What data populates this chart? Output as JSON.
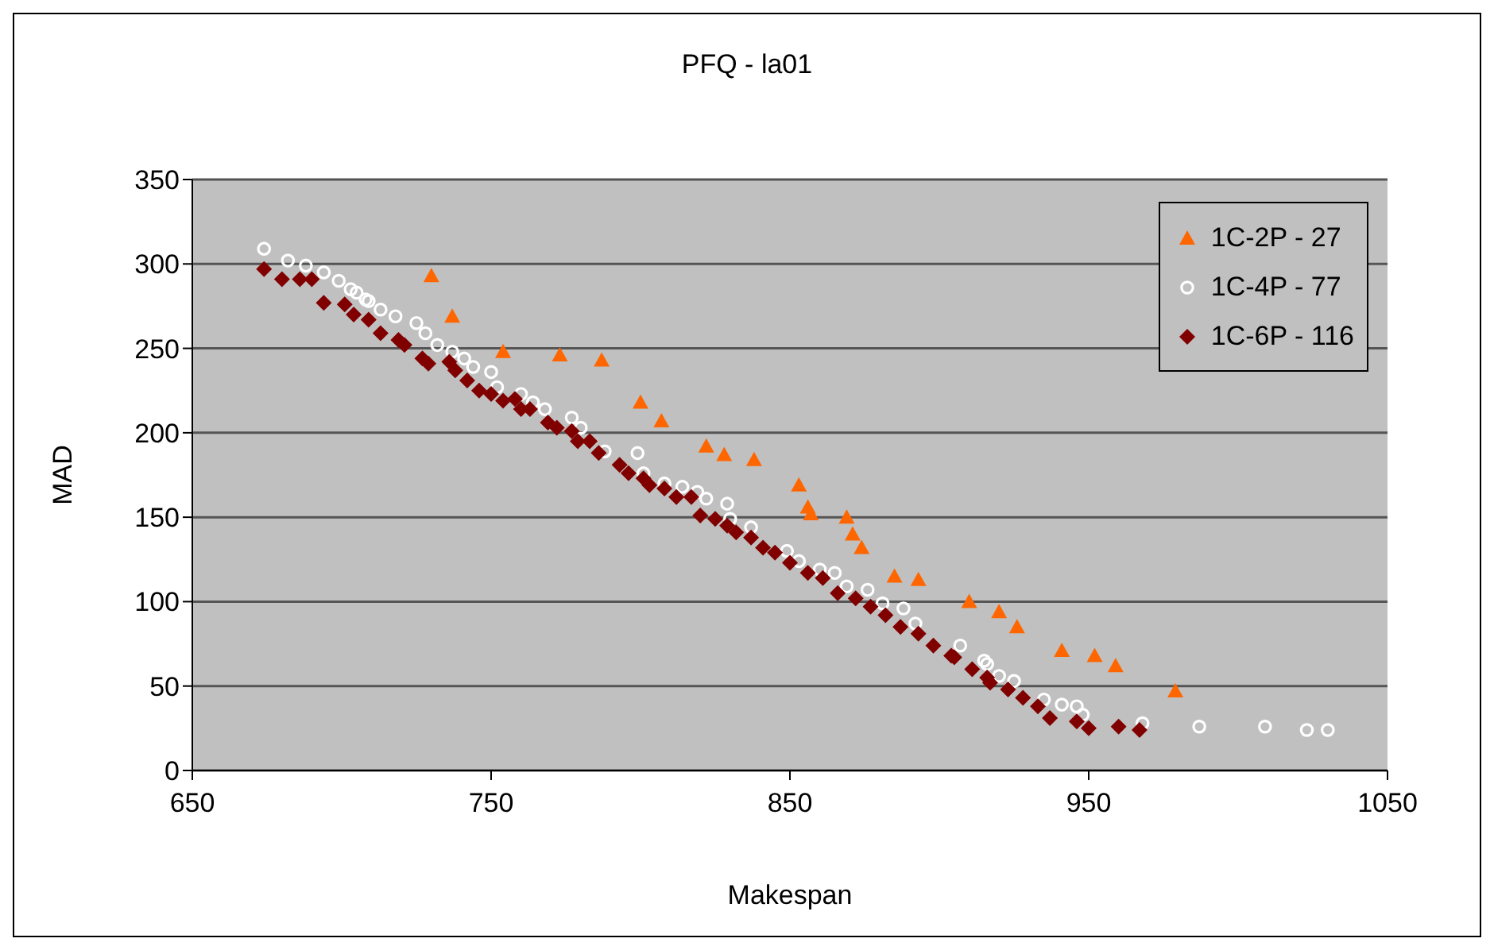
{
  "chart_data": {
    "type": "scatter",
    "title": "PFQ - la01",
    "xlabel": "Makespan",
    "ylabel": "MAD",
    "xlim": [
      650,
      1050
    ],
    "xticks": [
      650,
      750,
      850,
      950,
      1050
    ],
    "ylim": [
      0,
      350
    ],
    "yticks": [
      0,
      50,
      100,
      150,
      200,
      250,
      300,
      350
    ],
    "grid": "y",
    "legend": "top right",
    "series": [
      {
        "name": "1C-2P - 27",
        "color": "#ff6600",
        "marker": "triangle",
        "x": [
          730,
          737,
          754,
          773,
          787,
          800,
          807,
          822,
          828,
          838,
          853,
          856,
          857,
          869,
          871,
          874,
          885,
          893,
          910,
          920,
          926,
          941,
          952,
          959,
          979
        ],
        "values": [
          293,
          269,
          248,
          246,
          243,
          218,
          207,
          192,
          187,
          184,
          169,
          156,
          152,
          150,
          140,
          132,
          115,
          113,
          100,
          94,
          85,
          71,
          68,
          62,
          47
        ]
      },
      {
        "name": "1C-4P - 77",
        "color": "#ffffff",
        "marker": "circle",
        "x": [
          674,
          682,
          688,
          694,
          699,
          703,
          705,
          708,
          709,
          713,
          718,
          725,
          728,
          732,
          737,
          741,
          744,
          750,
          752,
          760,
          764,
          768,
          777,
          780,
          782,
          788,
          799,
          801,
          808,
          814,
          819,
          822,
          829,
          830,
          837,
          843,
          849,
          853,
          860,
          865,
          869,
          876,
          881,
          888,
          892,
          907,
          915,
          916,
          920,
          925,
          935,
          941,
          946,
          948,
          968,
          987,
          1009,
          1023,
          1030
        ],
        "values": [
          309,
          302,
          299,
          295,
          290,
          285,
          283,
          279,
          278,
          273,
          269,
          265,
          259,
          252,
          248,
          244,
          239,
          236,
          227,
          223,
          218,
          214,
          209,
          203,
          null,
          189,
          188,
          176,
          170,
          168,
          165,
          161,
          158,
          149,
          144,
          null,
          130,
          124,
          119,
          117,
          109,
          107,
          99,
          96,
          87,
          74,
          65,
          63,
          56,
          53,
          42,
          39,
          38,
          33,
          28,
          26,
          26,
          24,
          24
        ]
      },
      {
        "name": "1C-6P - 116",
        "color": "#800000",
        "marker": "diamond",
        "x": [
          674,
          680,
          686,
          690,
          694,
          701,
          704,
          709,
          713,
          719,
          721,
          727,
          729,
          736,
          738,
          742,
          746,
          750,
          754,
          758,
          760,
          763,
          769,
          772,
          777,
          779,
          783,
          786,
          793,
          796,
          801,
          803,
          808,
          812,
          817,
          820,
          825,
          829,
          832,
          837,
          841,
          845,
          850,
          856,
          861,
          866,
          872,
          877,
          882,
          887,
          893,
          898,
          904,
          905,
          911,
          916,
          917,
          923,
          928,
          933,
          937,
          946,
          950,
          960,
          967
        ],
        "values": [
          297,
          291,
          291,
          291,
          277,
          276,
          270,
          267,
          259,
          255,
          252,
          244,
          241,
          242,
          237,
          231,
          225,
          223,
          219,
          220,
          214,
          214,
          206,
          203,
          201,
          195,
          195,
          188,
          181,
          176,
          173,
          169,
          167,
          162,
          162,
          151,
          149,
          145,
          141,
          138,
          132,
          129,
          123,
          117,
          114,
          105,
          102,
          97,
          92,
          85,
          81,
          74,
          68,
          67,
          60,
          55,
          52,
          48,
          43,
          38,
          31,
          29,
          25,
          26,
          24
        ]
      }
    ]
  }
}
